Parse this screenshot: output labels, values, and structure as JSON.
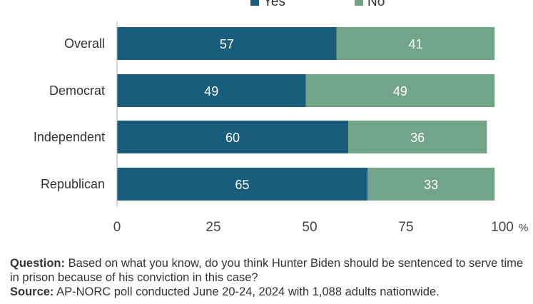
{
  "chart_data": {
    "type": "bar",
    "orientation": "horizontal",
    "stacked": true,
    "categories": [
      "Overall",
      "Democrat",
      "Independent",
      "Republican"
    ],
    "series": [
      {
        "name": "Yes",
        "values": [
          57,
          49,
          60,
          65
        ],
        "color": "#1a5c7c"
      },
      {
        "name": "No",
        "values": [
          41,
          49,
          36,
          33
        ],
        "color": "#72a587"
      }
    ],
    "xlim": [
      0,
      100
    ],
    "xticks": [
      0,
      25,
      50,
      75,
      100
    ],
    "xtick_labels": [
      "0",
      "25",
      "50",
      "75",
      "100"
    ],
    "unit_label": "%",
    "legend": "top-center",
    "grid": false
  },
  "notes": {
    "question_label": "Question:",
    "question_text": "Based on what you know, do you think Hunter Biden should be sentenced to serve time in prison because of his conviction in this case?",
    "source_label": "Source:",
    "source_text": "AP-NORC poll conducted June 20-24, 2024 with 1,088 adults nationwide."
  }
}
